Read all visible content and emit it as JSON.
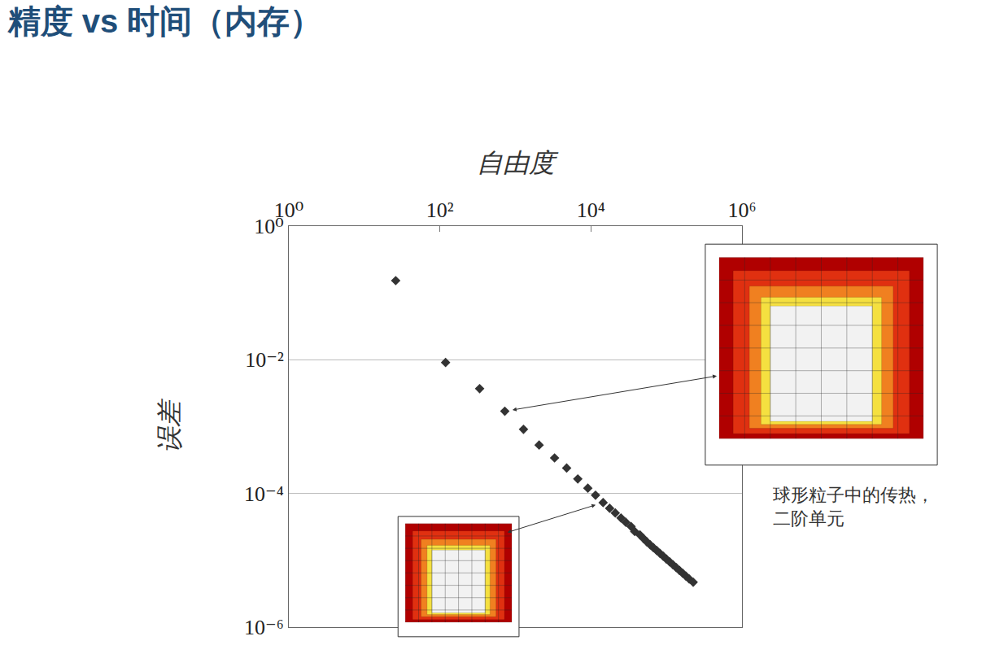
{
  "chart_data": {
    "type": "scatter",
    "title": "精度 vs 时间（内存）",
    "x_label": "自由度",
    "y_label": "误差",
    "x": [
      26,
      119,
      336,
      724,
      1280,
      2060,
      3300,
      4770,
      6700,
      9100,
      11500,
      14500,
      17700,
      21000,
      25000,
      29000,
      34000,
      38000,
      44500,
      50000,
      55200,
      61000,
      67300,
      74300,
      82000,
      90600,
      100000,
      110400,
      121900,
      134600,
      148600,
      164100,
      181100,
      200000,
      226000
    ],
    "values": [
      0.153,
      0.0091,
      0.0037,
      0.0017,
      0.00091,
      0.00053,
      0.00034,
      0.00024,
      0.000165,
      0.00012,
      9.4e-05,
      7.3e-05,
      6e-05,
      5.1e-05,
      4.3e-05,
      3.7e-05,
      3.2e-05,
      2.7e-05,
      2.4e-05,
      2.1e-05,
      1.88e-05,
      1.7e-05,
      1.54e-05,
      1.4e-05,
      1.27e-05,
      1.15e-05,
      1.04e-05,
      9.46e-06,
      8.57e-06,
      7.78e-06,
      7.05e-06,
      6.39e-06,
      5.79e-06,
      5.25e-06,
      4.7e-06
    ],
    "color": "#333333",
    "marker": "diamond",
    "log": true,
    "grid": "y",
    "xlim": [
      1,
      1000000
    ],
    "ylim": [
      1e-06,
      1
    ],
    "xticks": [
      {
        "value": 1,
        "label": "10⁰"
      },
      {
        "value": 100,
        "label": "10²"
      },
      {
        "value": 10000,
        "label": "10⁴"
      },
      {
        "value": 1000000,
        "label": "10⁶"
      }
    ],
    "yticks": [
      {
        "value": 1,
        "label": "10⁰"
      },
      {
        "value": 0.01,
        "label": "10⁻²"
      },
      {
        "value": 0.0001,
        "label": "10⁻⁴"
      },
      {
        "value": 1e-06,
        "label": "10⁻⁶"
      }
    ],
    "annotations": [
      {
        "text": "球形粒子中的传热，\n二阶单元"
      }
    ]
  }
}
